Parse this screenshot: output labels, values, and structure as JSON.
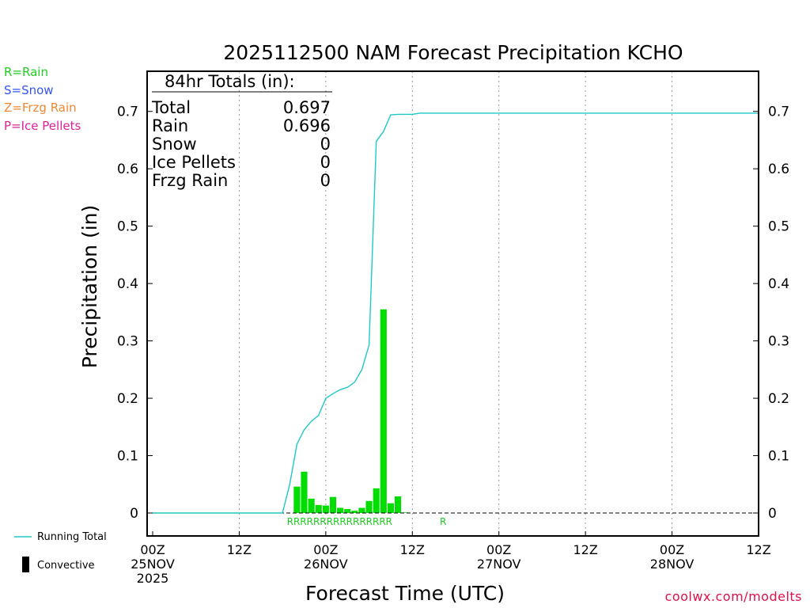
{
  "chart_data": {
    "type": "bar",
    "title": "2025112500 NAM Forecast Precipitation KCHO",
    "xlabel": "Forecast Time (UTC)",
    "ylabel": "Precipitation (in)",
    "ylim": [
      -0.04,
      0.77
    ],
    "yticks": [
      0,
      0.1,
      0.2,
      0.3,
      0.4,
      0.5,
      0.6,
      0.7
    ],
    "ytick_labels": [
      "0",
      "0.1",
      "0.2",
      "0.3",
      "0.4",
      "0.5",
      "0.6",
      "0.7"
    ],
    "x_unit": "forecast hour",
    "xlim": [
      0,
      84
    ],
    "xticks": [
      {
        "hour": 0,
        "lines": [
          "00Z",
          "25NOV",
          "2025"
        ]
      },
      {
        "hour": 12,
        "lines": [
          "12Z"
        ]
      },
      {
        "hour": 24,
        "lines": [
          "00Z",
          "26NOV"
        ]
      },
      {
        "hour": 36,
        "lines": [
          "12Z"
        ]
      },
      {
        "hour": 48,
        "lines": [
          "00Z",
          "27NOV"
        ]
      },
      {
        "hour": 60,
        "lines": [
          "12Z"
        ]
      },
      {
        "hour": 72,
        "lines": [
          "00Z",
          "28NOV"
        ]
      },
      {
        "hour": 84,
        "lines": [
          "12Z"
        ]
      }
    ],
    "series": [
      {
        "name": "Hourly Precipitation",
        "kind": "bar",
        "color": "#00dd00",
        "bar_hours": [
          20,
          21,
          22,
          23,
          24,
          25,
          26,
          27,
          28,
          29,
          30,
          31,
          32,
          33,
          34,
          35
        ],
        "values": [
          0.046,
          0.072,
          0.025,
          0.014,
          0.013,
          0.028,
          0.009,
          0.007,
          0.004,
          0.009,
          0.021,
          0.043,
          0.355,
          0.017,
          0.029,
          0.001
        ]
      },
      {
        "name": "Running Total",
        "kind": "line",
        "color": "#1ec8c8",
        "x": [
          0,
          18,
          19,
          20,
          21,
          22,
          23,
          24,
          25,
          26,
          27,
          28,
          29,
          30,
          31,
          32,
          33,
          34,
          35,
          36,
          37,
          38,
          84
        ],
        "values": [
          0,
          0,
          0.05,
          0.12,
          0.145,
          0.16,
          0.17,
          0.2,
          0.208,
          0.215,
          0.219,
          0.228,
          0.25,
          0.293,
          0.648,
          0.665,
          0.694,
          0.695,
          0.695,
          0.695,
          0.697,
          0.697,
          0.697
        ]
      }
    ],
    "precip_type_row": [
      {
        "hour": 18.6,
        "label": "RRRRRRRRRRRRRRRR"
      },
      {
        "hour": 39.8,
        "label": "R"
      }
    ],
    "totals_box": {
      "heading": "84hr Totals (in):",
      "rows": [
        {
          "label": "Total",
          "value": "0.697"
        },
        {
          "label": "Rain",
          "value": "0.696"
        },
        {
          "label": "Snow",
          "value": "0"
        },
        {
          "label": "Ice Pellets",
          "value": "0"
        },
        {
          "label": "Frzg Rain",
          "value": "0"
        }
      ]
    }
  },
  "type_key": [
    {
      "text": "R=Rain",
      "color": "#22cc22"
    },
    {
      "text": "S=Snow",
      "color": "#3355ee"
    },
    {
      "text": "Z=Frzg Rain",
      "color": "#ee8833"
    },
    {
      "text": "P=Ice Pellets",
      "color": "#dd2299"
    }
  ],
  "bottom_legend": {
    "running_total": "Running Total",
    "convective": "Convective"
  },
  "credit": "coolwx.com/modelts"
}
